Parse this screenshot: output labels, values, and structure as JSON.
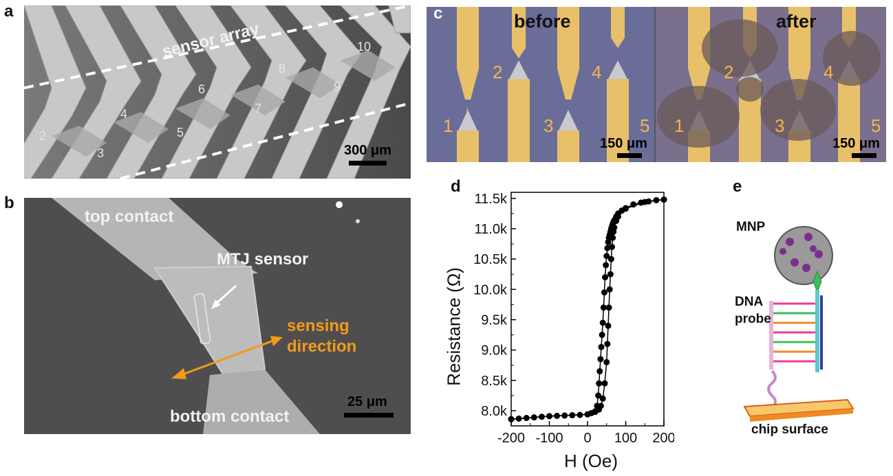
{
  "panel_labels": {
    "a": "a",
    "b": "b",
    "c": "c",
    "d": "d",
    "e": "e"
  },
  "panel_a": {
    "label": "sensor array",
    "sensor_numbers": [
      "2",
      "3",
      "4",
      "5",
      "6",
      "7",
      "8",
      "9",
      "10"
    ],
    "scale": "300 μm"
  },
  "panel_b": {
    "top_contact": "top contact",
    "bottom_contact": "bottom contact",
    "mtj_sensor": "MTJ sensor",
    "sensing_line1": "sensing",
    "sensing_line2": "direction",
    "scale": "25 μm",
    "accent_color": "#f39a1a"
  },
  "panel_c": {
    "before": "before",
    "after": "after",
    "numbers_before": [
      "1",
      "2",
      "3",
      "4",
      "5"
    ],
    "numbers_after": [
      "1",
      "2",
      "3",
      "4",
      "5"
    ],
    "scale_before": "150 μm",
    "scale_after": "150 μm"
  },
  "panel_e": {
    "mnp": "MNP",
    "dna_line1": "DNA",
    "dna_line2": "probe",
    "chip_surface": "chip surface"
  },
  "chart_data": {
    "type": "scatter",
    "title": "",
    "xlabel": "H (Oe)",
    "ylabel": "Resistance (Ω)",
    "xlim": [
      -200,
      200
    ],
    "ylim": [
      7750,
      11600
    ],
    "x_ticks": [
      -200,
      -100,
      0,
      100,
      200
    ],
    "x_tick_labels": [
      "-200",
      "-100",
      "0",
      "100",
      "200"
    ],
    "y_ticks": [
      8000,
      8500,
      9000,
      9500,
      10000,
      10500,
      11000,
      11500
    ],
    "y_tick_labels": [
      "8.0k",
      "8.5k",
      "9.0k",
      "9.5k",
      "10.0k",
      "10.5k",
      "11.0k",
      "11.5k"
    ],
    "series": [
      {
        "marker": "circle",
        "color": "#000000",
        "x": [
          -200,
          -180,
          -160,
          -140,
          -120,
          -100,
          -80,
          -60,
          -40,
          -20,
          0,
          10,
          20,
          25,
          28,
          30,
          32,
          34,
          36,
          38,
          40,
          42,
          44,
          46,
          48,
          50,
          52,
          54,
          56,
          58,
          60,
          62,
          64,
          66,
          68,
          70,
          75,
          80,
          90,
          100,
          120,
          140,
          160,
          180,
          200
        ],
        "values": [
          7860,
          7870,
          7880,
          7890,
          7900,
          7910,
          7915,
          7920,
          7925,
          7930,
          7940,
          7960,
          7990,
          8080,
          8250,
          8450,
          8650,
          8850,
          9050,
          9250,
          9450,
          9700,
          9950,
          10200,
          10400,
          10550,
          10680,
          10780,
          10850,
          10900,
          10950,
          11000,
          11040,
          11080,
          11110,
          11140,
          11200,
          11250,
          11300,
          11340,
          11400,
          11430,
          11450,
          11470,
          11480
        ]
      },
      {
        "marker": "circle",
        "color": "#000000",
        "x": [
          -200,
          -100,
          0,
          20,
          30,
          35,
          40,
          45,
          50,
          52,
          54,
          56,
          58,
          60,
          62,
          64,
          66,
          68,
          70,
          75,
          80,
          100,
          150,
          200
        ],
        "values": [
          7860,
          7910,
          7940,
          7980,
          8020,
          8080,
          8200,
          8450,
          8800,
          9100,
          9400,
          9700,
          10000,
          10250,
          10500,
          10700,
          10850,
          10950,
          11020,
          11130,
          11200,
          11330,
          11440,
          11480
        ]
      }
    ],
    "grid": false,
    "legend": "none"
  }
}
